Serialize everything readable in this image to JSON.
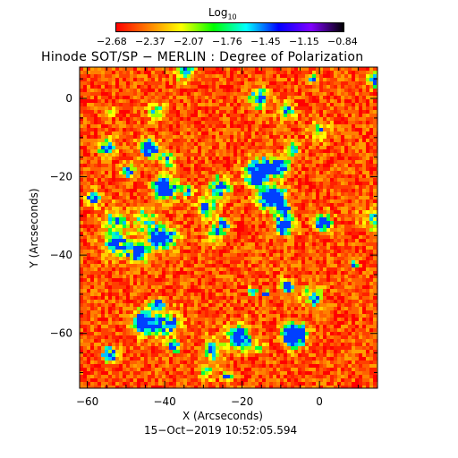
{
  "colorbar": {
    "label_base": "Log",
    "label_sub": "10",
    "ticks": [
      "−2.68",
      "−2.37",
      "−2.07",
      "−1.76",
      "−1.45",
      "−1.15",
      "−0.84"
    ],
    "colors": [
      "#ff0000",
      "#ff8000",
      "#ffff00",
      "#00ff00",
      "#00ffff",
      "#0000ff",
      "#8000ff",
      "#000000"
    ]
  },
  "title": "Hinode SOT/SP − MERLIN : Degree of Polarization",
  "timestamp": "15−Oct−2019 10:52:05.594",
  "chart_data": {
    "type": "heatmap",
    "title": "Hinode SOT/SP − MERLIN : Degree of Polarization",
    "xlabel": "X (Arcseconds)",
    "ylabel": "Y (Arcseconds)",
    "xlim": [
      -62,
      15
    ],
    "ylim": [
      -74,
      8
    ],
    "xticks": [
      -60,
      -40,
      -20,
      0
    ],
    "yticks": [
      0,
      -20,
      -40,
      -60
    ],
    "xtick_labels": [
      "−60",
      "−40",
      "−20",
      "0"
    ],
    "ytick_labels": [
      "0",
      "−20",
      "−40",
      "−60"
    ],
    "color_scale": "log10",
    "value_range": [
      -2.68,
      -0.84
    ]
  }
}
